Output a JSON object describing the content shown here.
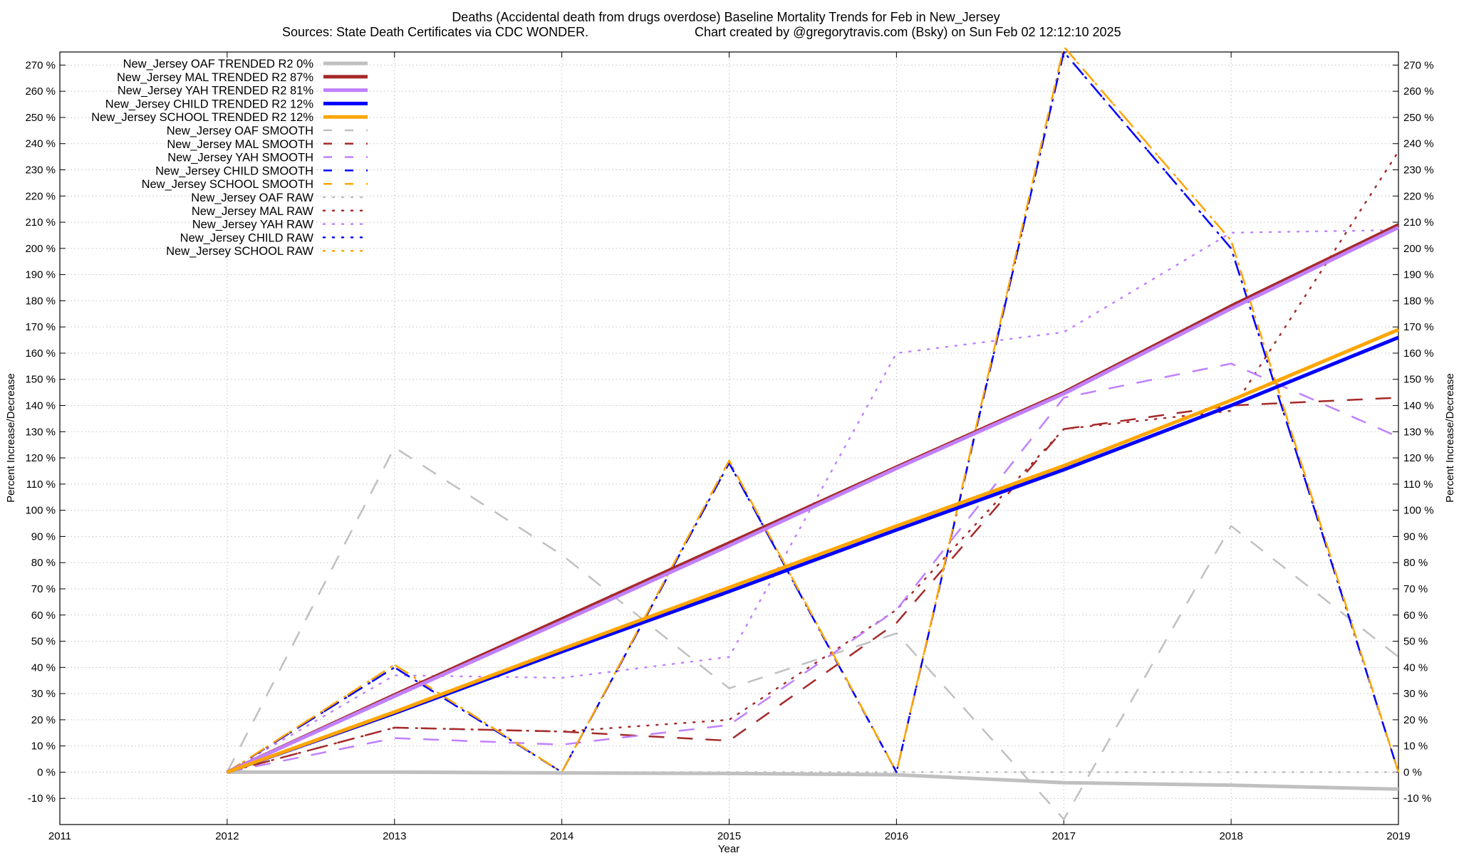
{
  "chart_data": {
    "type": "line",
    "title": "Deaths (Accidental death from drugs overdose)  Baseline Mortality Trends for Feb in New_Jersey",
    "subtitle_left": "Sources: State Death Certificates via CDC WONDER.",
    "subtitle_right": "Chart created by @gregorytravis.com (Bsky) on Sun Feb 02 12:12:10 2025",
    "xlabel": "Year",
    "ylabel": "Percent Increase/Decrease",
    "y2label": "Percent Increase/Decrease",
    "xlim": [
      2011,
      2019
    ],
    "ylim": [
      -20,
      275
    ],
    "x_ticks": [
      "2011",
      "2012",
      "2013",
      "2014",
      "2015",
      "2016",
      "2017",
      "2018",
      "2019"
    ],
    "y_ticks": [
      "-10 %",
      "0 %",
      "10 %",
      "20 %",
      "30 %",
      "40 %",
      "50 %",
      "60 %",
      "70 %",
      "80 %",
      "90 %",
      "100 %",
      "110 %",
      "120 %",
      "130 %",
      "140 %",
      "150 %",
      "160 %",
      "170 %",
      "180 %",
      "190 %",
      "200 %",
      "210 %",
      "220 %",
      "230 %",
      "240 %",
      "250 %",
      "260 %",
      "270 %"
    ],
    "grid": true,
    "legend_position": "top-left",
    "x": [
      2012,
      2013,
      2014,
      2015,
      2016,
      2017,
      2018,
      2019
    ],
    "series": [
      {
        "name": "New_Jersey OAF TRENDED R2   0%",
        "color": "#c0c0c0",
        "style": "solid",
        "width": 5,
        "values": [
          0,
          0,
          -0.3,
          -0.5,
          -1,
          -4,
          -5,
          -6.5
        ]
      },
      {
        "name": "New_Jersey MAL TRENDED R2  87%",
        "color": "#a52a2a",
        "style": "solid",
        "width": 5,
        "values": [
          0,
          29.5,
          58.5,
          87.5,
          116.5,
          145,
          178,
          209
        ]
      },
      {
        "name": "New_Jersey YAH TRENDED R2  81%",
        "color": "#c080ff",
        "style": "solid",
        "width": 5,
        "values": [
          0,
          29,
          57.5,
          86.5,
          116,
          144.5,
          177,
          208
        ]
      },
      {
        "name": "New_Jersey CHILD TRENDED R2  12%",
        "color": "#0000ff",
        "style": "solid",
        "width": 5,
        "values": [
          0,
          22.5,
          46,
          69,
          92.5,
          115.5,
          140,
          166
        ]
      },
      {
        "name": "New_Jersey SCHOOL TRENDED R2  12%",
        "color": "#ffa500",
        "style": "solid",
        "width": 5,
        "values": [
          0,
          23,
          47,
          70.5,
          94,
          117,
          142,
          169
        ]
      },
      {
        "name": "New_Jersey OAF SMOOTH",
        "color": "#c0c0c0",
        "style": "dashed",
        "width": 2.5,
        "values": [
          0,
          124,
          83,
          32,
          53,
          -18,
          94,
          44
        ]
      },
      {
        "name": "New_Jersey MAL SMOOTH",
        "color": "#a52a2a",
        "style": "dashed",
        "width": 2.5,
        "values": [
          0,
          17,
          15.5,
          12,
          57,
          131,
          140,
          143
        ]
      },
      {
        "name": "New_Jersey YAH SMOOTH",
        "color": "#c080ff",
        "style": "dashed",
        "width": 2.5,
        "values": [
          0,
          13,
          10.5,
          18,
          62,
          143,
          156,
          128
        ]
      },
      {
        "name": "New_Jersey CHILD SMOOTH",
        "color": "#0000ff",
        "style": "dashed",
        "width": 2.5,
        "values": [
          0,
          40,
          0,
          118,
          0,
          275,
          200,
          0
        ]
      },
      {
        "name": "New_Jersey SCHOOL SMOOTH",
        "color": "#ffa500",
        "style": "dashed",
        "width": 2.5,
        "values": [
          0,
          41,
          0,
          119,
          0,
          277,
          203,
          0
        ]
      },
      {
        "name": "New_Jersey OAF RAW",
        "color": "#c0c0c0",
        "style": "dotted",
        "width": 2.5,
        "values": [
          0,
          0,
          0,
          0,
          0,
          0,
          0,
          0
        ]
      },
      {
        "name": "New_Jersey MAL RAW",
        "color": "#a52a2a",
        "style": "dotted",
        "width": 2.5,
        "values": [
          0,
          17,
          15.5,
          20,
          62,
          131,
          138,
          237
        ]
      },
      {
        "name": "New_Jersey YAH RAW",
        "color": "#c080ff",
        "style": "dotted",
        "width": 2.5,
        "values": [
          0,
          37,
          36,
          44,
          160,
          168,
          206,
          207
        ]
      },
      {
        "name": "New_Jersey CHILD RAW",
        "color": "#0000ff",
        "style": "dotted",
        "width": 2.5,
        "values": [
          0,
          40,
          0,
          118,
          0,
          275,
          200,
          0
        ]
      },
      {
        "name": "New_Jersey SCHOOL RAW",
        "color": "#ffa500",
        "style": "dotted",
        "width": 2.5,
        "values": [
          0,
          41,
          0,
          119,
          0,
          277,
          203,
          0
        ]
      }
    ]
  }
}
